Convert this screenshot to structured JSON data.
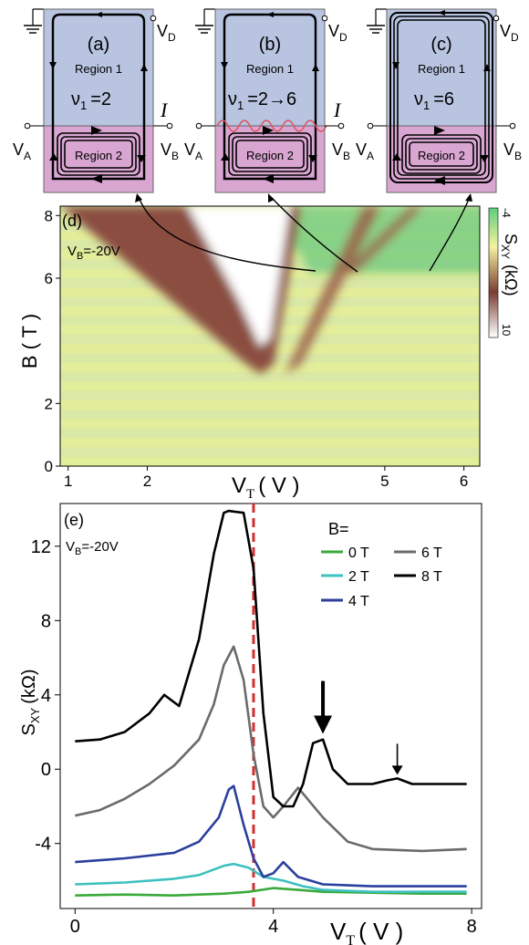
{
  "schematics": [
    {
      "tag": "(a)",
      "r1": "Region 1",
      "r2": "Region 2",
      "nu": "ν",
      "nu_sub": "1",
      "nu_val": "=2",
      "vd": "V",
      "vd_sub": "D",
      "va": "V",
      "va_sub": "A",
      "vb": "V",
      "vb_sub": "B",
      "current": "I"
    },
    {
      "tag": "(b)",
      "r1": "Region 1",
      "r2": "Region 2",
      "nu": "ν",
      "nu_sub": "1",
      "nu_val": "=2→6",
      "vd": "V",
      "vd_sub": "D",
      "va": "V",
      "va_sub": "A",
      "vb": "V",
      "vb_sub": "B",
      "current": "I"
    },
    {
      "tag": "(c)",
      "r1": "Region 1",
      "r2": "Region 2",
      "nu": "ν",
      "nu_sub": "1",
      "nu_val": "=6",
      "vd": "V",
      "vd_sub": "D",
      "va": "V",
      "va_sub": "A",
      "vb": "V",
      "vb_sub": "B",
      "current": "I"
    }
  ],
  "colors": {
    "region1": "#b8c4e0",
    "region2": "#d9a6d2",
    "region_border": "#666666",
    "wave": "#e0505a",
    "dashed_line": "#d03030"
  },
  "chart_data": [
    {
      "type": "heatmap",
      "panel": "(d)",
      "annotation": "V",
      "annotation_sub": "B",
      "annotation_val": "=-20V",
      "xlabel": "V",
      "xlabel_sub": "T",
      "xlabel_unit": "( V )",
      "ylabel": "B ( T )",
      "x_ticks": [
        "1",
        "2",
        "5",
        "6"
      ],
      "y_ticks": [
        "0",
        "2",
        "6",
        "8"
      ],
      "xlim": [
        0.9,
        6.2
      ],
      "ylim": [
        0,
        8.3
      ],
      "colorbar": {
        "label": "S",
        "label_sub": "XY",
        "label_unit": "(kΩ)",
        "min": "-4",
        "max": "10",
        "cmap": [
          "#5ccf7c",
          "#f5f29e",
          "#7a3d33",
          "#ffffff"
        ]
      },
      "dark_lobe": {
        "vertex": [
          3.25,
          2.6
        ],
        "left_edge_at_8T": 1.2,
        "right_edge_at_8T": 4.2
      },
      "stripes": [
        {
          "from": [
            3.7,
            2.5
          ],
          "to": [
            4.9,
            8.0
          ]
        },
        {
          "from": [
            4.4,
            6.0
          ],
          "to": [
            5.3,
            7.8
          ]
        }
      ]
    },
    {
      "type": "line",
      "panel": "(e)",
      "annotation": "V",
      "annotation_sub": "B",
      "annotation_val": "=-20V",
      "xlabel": "V",
      "xlabel_sub": "T",
      "xlabel_unit": "( V )",
      "ylabel": "S",
      "ylabel_sub": "XY",
      "ylabel_unit": "(kΩ)",
      "xlim": [
        -0.3,
        8.2
      ],
      "ylim": [
        -7.5,
        14.3
      ],
      "x_ticks": [
        "0",
        "4",
        "8"
      ],
      "y_ticks": [
        "12",
        "8",
        "4",
        "0",
        "-4"
      ],
      "legend_title": "B=",
      "dashed_vline_x": 3.6,
      "series": [
        {
          "name": "0 T",
          "color": "#3aaa3a",
          "x": [
            0,
            1,
            2,
            3,
            3.5,
            4,
            4.5,
            5,
            6,
            7,
            7.9
          ],
          "y": [
            -6.8,
            -6.75,
            -6.8,
            -6.7,
            -6.6,
            -6.4,
            -6.5,
            -6.6,
            -6.65,
            -6.7,
            -6.7
          ]
        },
        {
          "name": "2 T",
          "color": "#3ec0c0",
          "x": [
            0,
            1,
            2,
            2.5,
            3,
            3.2,
            3.5,
            3.8,
            4.2,
            4.6,
            5,
            6,
            7,
            7.9
          ],
          "y": [
            -6.2,
            -6.1,
            -5.9,
            -5.7,
            -5.2,
            -5.1,
            -5.3,
            -5.8,
            -6.0,
            -6.3,
            -6.5,
            -6.6,
            -6.6,
            -6.6
          ]
        },
        {
          "name": "4 T",
          "color": "#2b3f9e",
          "x": [
            0,
            1,
            2,
            2.5,
            2.9,
            3.1,
            3.2,
            3.4,
            3.6,
            3.8,
            4.0,
            4.2,
            4.5,
            5,
            6,
            7,
            7.9
          ],
          "y": [
            -5.0,
            -4.8,
            -4.5,
            -3.9,
            -2.6,
            -1.1,
            -0.9,
            -3.0,
            -4.8,
            -5.8,
            -5.6,
            -5.0,
            -5.8,
            -6.2,
            -6.3,
            -6.3,
            -6.3
          ]
        },
        {
          "name": "6 T",
          "color": "#6b6b6b",
          "x": [
            0,
            0.5,
            1,
            1.5,
            2,
            2.5,
            2.8,
            3.0,
            3.2,
            3.4,
            3.6,
            3.8,
            4.0,
            4.2,
            4.5,
            5,
            5.5,
            6,
            7,
            7.9
          ],
          "y": [
            -2.5,
            -2.2,
            -1.6,
            -0.8,
            0.2,
            1.6,
            3.5,
            5.6,
            6.6,
            4.8,
            0.8,
            -2.0,
            -2.6,
            -2.0,
            -1.0,
            -2.6,
            -3.9,
            -4.3,
            -4.4,
            -4.3
          ]
        },
        {
          "name": "8 T",
          "color": "#000000",
          "x": [
            0,
            0.5,
            1,
            1.5,
            1.8,
            2.1,
            2.5,
            2.8,
            3.0,
            3.1,
            3.4,
            3.6,
            3.8,
            4.0,
            4.2,
            4.4,
            4.6,
            4.8,
            5.0,
            5.2,
            5.5,
            6,
            6.3,
            6.5,
            6.8,
            7,
            7.5,
            7.9
          ],
          "y": [
            1.5,
            1.6,
            2.0,
            3.0,
            4.0,
            3.4,
            7.0,
            11.6,
            13.8,
            13.9,
            13.8,
            10.8,
            3.0,
            -1.5,
            -2.0,
            -2.0,
            -0.8,
            1.4,
            1.6,
            0.0,
            -0.8,
            -0.8,
            -0.6,
            -0.5,
            -0.8,
            -0.8,
            -0.8,
            -0.8
          ]
        }
      ],
      "arrows": [
        {
          "x": 5.0,
          "y_tip": 1.9,
          "size": "large"
        },
        {
          "x": 6.5,
          "y_tip": -0.3,
          "size": "small"
        }
      ]
    }
  ]
}
